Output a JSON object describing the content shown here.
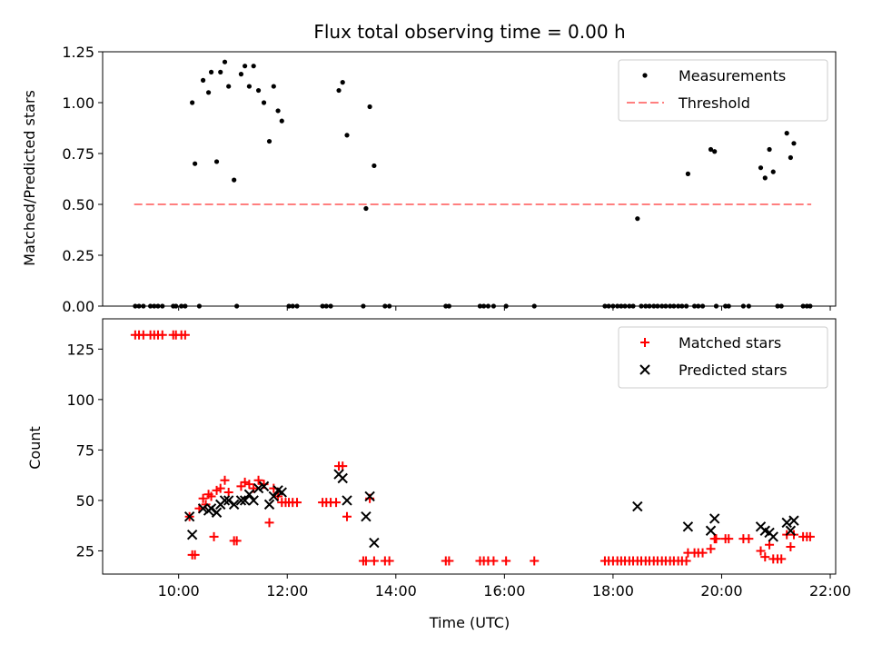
{
  "chart_data": [
    {
      "type": "scatter",
      "title": "Flux total observing time = 0.00 h",
      "xlabel": "",
      "ylabel": "Matched/Predicted stars",
      "xlim": [
        8.6,
        22.1
      ],
      "ylim": [
        0,
        1.25
      ],
      "yticks": [
        0,
        0.25,
        0.5,
        0.75,
        1.0,
        1.25
      ],
      "ytick_labels": [
        "0.00",
        "0.25",
        "0.50",
        "0.75",
        "1.00",
        "1.25"
      ],
      "grid": false,
      "legend": "top-right",
      "series": [
        {
          "name": "Measurements",
          "marker": "dot",
          "color": "#000000",
          "x": [
            10.25,
            10.3,
            10.45,
            10.55,
            10.6,
            10.7,
            10.77,
            10.85,
            10.92,
            11.02,
            11.15,
            11.22,
            11.3,
            11.38,
            11.47,
            11.57,
            11.67,
            11.75,
            11.83,
            11.9,
            12.95,
            13.02,
            13.1,
            13.45,
            13.52,
            13.6,
            18.45,
            19.38,
            19.8,
            19.87,
            20.72,
            20.8,
            20.88,
            20.95,
            21.2,
            21.27,
            21.33,
            9.2,
            9.27,
            9.35,
            9.48,
            9.55,
            9.62,
            9.7,
            9.9,
            9.95,
            10.05,
            10.12,
            10.38,
            11.07,
            12.03,
            12.1,
            12.18,
            12.65,
            12.72,
            12.8,
            13.4,
            13.8,
            13.88,
            14.92,
            14.98,
            15.55,
            15.62,
            15.7,
            15.8,
            16.03,
            16.55,
            17.85,
            17.92,
            18.0,
            18.08,
            18.15,
            18.22,
            18.3,
            18.37,
            18.52,
            18.6,
            18.67,
            18.75,
            18.82,
            18.9,
            18.97,
            19.05,
            19.12,
            19.2,
            19.27,
            19.35,
            19.5,
            19.57,
            19.65,
            19.9,
            20.07,
            20.13,
            20.4,
            20.5,
            21.03,
            21.1,
            21.5,
            21.57,
            21.63
          ],
          "y": [
            1.0,
            0.7,
            1.11,
            1.05,
            1.15,
            0.71,
            1.15,
            1.2,
            1.08,
            0.62,
            1.14,
            1.18,
            1.08,
            1.18,
            1.06,
            1.0,
            0.81,
            1.08,
            0.96,
            0.91,
            1.06,
            1.1,
            0.84,
            0.48,
            0.98,
            0.69,
            0.43,
            0.65,
            0.77,
            0.76,
            0.68,
            0.63,
            0.77,
            0.66,
            0.85,
            0.73,
            0.8,
            0,
            0,
            0,
            0,
            0,
            0,
            0,
            0,
            0,
            0,
            0,
            0,
            0,
            0,
            0,
            0,
            0,
            0,
            0,
            0,
            0,
            0,
            0,
            0,
            0,
            0,
            0,
            0,
            0,
            0,
            0,
            0,
            0,
            0,
            0,
            0,
            0,
            0,
            0,
            0,
            0,
            0,
            0,
            0,
            0,
            0,
            0,
            0,
            0,
            0,
            0,
            0,
            0,
            0,
            0,
            0,
            0,
            0,
            0,
            0,
            0,
            0,
            0
          ]
        },
        {
          "name": "Threshold",
          "marker": "dashed-line",
          "color": "#ff7f7f",
          "x": [
            9.18,
            21.65
          ],
          "y": [
            0.5,
            0.5
          ]
        }
      ]
    },
    {
      "type": "scatter",
      "title": "",
      "xlabel": "Time (UTC)",
      "ylabel": "Count",
      "xlim": [
        8.6,
        22.1
      ],
      "ylim": [
        13.5,
        140
      ],
      "xticks": [
        10,
        12,
        14,
        16,
        18,
        20,
        22
      ],
      "xtick_labels": [
        "10:00",
        "12:00",
        "14:00",
        "16:00",
        "18:00",
        "20:00",
        "22:00"
      ],
      "yticks": [
        25,
        50,
        75,
        100,
        125
      ],
      "ytick_labels": [
        "25",
        "50",
        "75",
        "100",
        "125"
      ],
      "grid": false,
      "legend": "top-right",
      "series": [
        {
          "name": "Matched stars",
          "marker": "plus",
          "color": "#ff0000",
          "x": [
            9.2,
            9.27,
            9.35,
            9.48,
            9.55,
            9.62,
            9.7,
            9.9,
            9.95,
            10.05,
            10.12,
            10.2,
            10.25,
            10.3,
            10.38,
            10.45,
            10.5,
            10.55,
            10.6,
            10.65,
            10.7,
            10.77,
            10.85,
            10.92,
            11.02,
            11.07,
            11.15,
            11.22,
            11.3,
            11.38,
            11.47,
            11.57,
            11.67,
            11.75,
            11.83,
            11.9,
            11.97,
            12.03,
            12.1,
            12.18,
            12.65,
            12.72,
            12.8,
            12.9,
            12.95,
            13.02,
            13.1,
            13.4,
            13.45,
            13.52,
            13.6,
            13.8,
            13.88,
            14.92,
            14.98,
            15.55,
            15.62,
            15.7,
            15.8,
            16.03,
            16.55,
            17.85,
            17.92,
            18.0,
            18.08,
            18.15,
            18.22,
            18.3,
            18.37,
            18.45,
            18.52,
            18.6,
            18.67,
            18.75,
            18.82,
            18.9,
            18.97,
            19.05,
            19.12,
            19.2,
            19.27,
            19.35,
            19.38,
            19.5,
            19.57,
            19.65,
            19.8,
            19.87,
            19.9,
            20.07,
            20.13,
            20.4,
            20.5,
            20.72,
            20.8,
            20.88,
            20.95,
            21.03,
            21.1,
            21.2,
            21.27,
            21.33,
            21.5,
            21.57,
            21.63
          ],
          "y": [
            132,
            132,
            132,
            132,
            132,
            132,
            132,
            132,
            132,
            132,
            132,
            42,
            23,
            23,
            46,
            51,
            48,
            53,
            52,
            32,
            55,
            56,
            60,
            54,
            30,
            30,
            57,
            59,
            58,
            56,
            60,
            58,
            39,
            56,
            52,
            49,
            49,
            49,
            49,
            49,
            49,
            49,
            49,
            49,
            67,
            67,
            42,
            20,
            20,
            51,
            20,
            20,
            20,
            20,
            20,
            20,
            20,
            20,
            20,
            20,
            20,
            20,
            20,
            20,
            20,
            20,
            20,
            20,
            20,
            20,
            20,
            20,
            20,
            20,
            20,
            20,
            20,
            20,
            20,
            20,
            20,
            20,
            24,
            24,
            24,
            24,
            26,
            31,
            31,
            31,
            31,
            31,
            31,
            25,
            22,
            28,
            21,
            21,
            21,
            33,
            27,
            33,
            32,
            32,
            32
          ]
        },
        {
          "name": "Predicted stars",
          "marker": "x",
          "color": "#000000",
          "x": [
            10.2,
            10.25,
            10.45,
            10.55,
            10.6,
            10.7,
            10.77,
            10.85,
            10.92,
            11.02,
            11.15,
            11.22,
            11.3,
            11.38,
            11.47,
            11.57,
            11.67,
            11.75,
            11.83,
            11.9,
            12.95,
            13.02,
            13.1,
            13.45,
            13.52,
            13.6,
            18.45,
            19.38,
            19.8,
            19.87,
            20.72,
            20.8,
            20.88,
            20.95,
            21.2,
            21.27,
            21.33
          ],
          "y": [
            42,
            33,
            46,
            45,
            46,
            44,
            48,
            50,
            50,
            48,
            50,
            50,
            53,
            50,
            56,
            57,
            48,
            52,
            55,
            54,
            63,
            61,
            50,
            42,
            52,
            29,
            47,
            37,
            35,
            41,
            37,
            35,
            34,
            32,
            39,
            35,
            40
          ]
        }
      ]
    }
  ]
}
